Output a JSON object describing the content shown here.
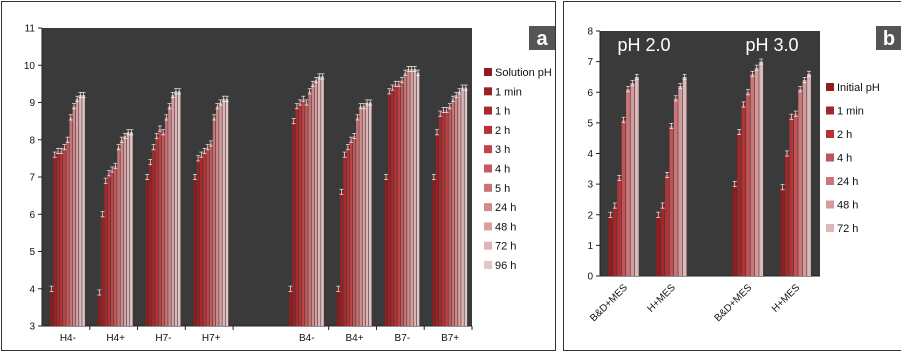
{
  "chart_data": [
    {
      "type": "bar",
      "panel_label": "a",
      "categories": [
        "H4-",
        "H4+",
        "H7-",
        "H7+",
        "B4-",
        "B4+",
        "B7-",
        "B7+"
      ],
      "category_slots": [
        0,
        1,
        2,
        3,
        5,
        6,
        7,
        8
      ],
      "ylim": [
        3,
        11
      ],
      "yticks": [
        3,
        4,
        5,
        6,
        7,
        8,
        9,
        10,
        11
      ],
      "grid": false,
      "legend": "right",
      "colors": [
        "#8f1c1e",
        "#9b2124",
        "#a82a2c",
        "#b43337",
        "#bd4447",
        "#c45a5c",
        "#cb7374",
        "#d2898b",
        "#d8a0a2",
        "#ddb5b6",
        "#e3c5c6"
      ],
      "series": [
        {
          "name": "Solution pH",
          "values": [
            4.0,
            3.9,
            7.0,
            7.0,
            4.0,
            4.0,
            7.0,
            7.0
          ]
        },
        {
          "name": "1 min",
          "values": [
            7.6,
            6.0,
            7.4,
            7.5,
            8.5,
            6.6,
            9.3,
            8.2
          ]
        },
        {
          "name": "1 h",
          "values": [
            7.7,
            6.9,
            7.8,
            7.6,
            8.9,
            7.6,
            9.4,
            8.7
          ]
        },
        {
          "name": "2 h",
          "values": [
            7.7,
            7.1,
            8.1,
            7.7,
            9.0,
            7.8,
            9.5,
            8.8
          ]
        },
        {
          "name": "3  h",
          "values": [
            7.8,
            7.2,
            8.3,
            7.8,
            9.1,
            8.0,
            9.5,
            8.8
          ]
        },
        {
          "name": "4 h",
          "values": [
            8.0,
            7.3,
            8.2,
            7.9,
            9.0,
            8.1,
            9.6,
            8.9
          ]
        },
        {
          "name": "5 h",
          "values": [
            8.6,
            7.8,
            8.6,
            8.6,
            9.3,
            8.6,
            9.8,
            9.1
          ]
        },
        {
          "name": "24 h",
          "values": [
            8.9,
            8.0,
            8.9,
            8.9,
            9.5,
            8.9,
            9.9,
            9.2
          ]
        },
        {
          "name": "48 h",
          "values": [
            9.1,
            8.1,
            9.2,
            9.0,
            9.6,
            8.9,
            9.9,
            9.3
          ]
        },
        {
          "name": "72 h",
          "values": [
            9.2,
            8.2,
            9.3,
            9.1,
            9.7,
            9.0,
            9.9,
            9.4
          ]
        },
        {
          "name": "96 h",
          "values": [
            9.2,
            8.2,
            9.3,
            9.1,
            9.7,
            9.0,
            9.8,
            9.4
          ]
        }
      ]
    },
    {
      "type": "bar",
      "panel_label": "b",
      "categories": [
        "B&D+MES",
        "H+MES",
        "B&D+MES",
        "H+MES"
      ],
      "category_slots": [
        0,
        1,
        2.6,
        3.6
      ],
      "ylim": [
        0,
        8
      ],
      "yticks": [
        0,
        1,
        2,
        3,
        4,
        5,
        6,
        7,
        8
      ],
      "grid": false,
      "legend": "right",
      "group_labels": [
        "pH 2.0",
        "pH 3.0"
      ],
      "colors": [
        "#8f1c1e",
        "#a32628",
        "#b43337",
        "#c25356",
        "#cc7678",
        "#d59a9c",
        "#ddb8b9"
      ],
      "series": [
        {
          "name": "Initial pH",
          "values": [
            2.0,
            2.0,
            3.0,
            2.9
          ]
        },
        {
          "name": "1 min",
          "values": [
            2.3,
            2.3,
            4.7,
            4.0
          ]
        },
        {
          "name": "2 h",
          "values": [
            3.2,
            3.3,
            5.6,
            5.2
          ]
        },
        {
          "name": "4 h",
          "values": [
            5.1,
            4.9,
            6.0,
            5.3
          ]
        },
        {
          "name": "24 h",
          "values": [
            6.1,
            5.8,
            6.6,
            6.1
          ]
        },
        {
          "name": "48 h",
          "values": [
            6.3,
            6.2,
            6.8,
            6.4
          ]
        },
        {
          "name": "72 h",
          "values": [
            6.5,
            6.5,
            7.0,
            6.6
          ]
        }
      ]
    }
  ]
}
